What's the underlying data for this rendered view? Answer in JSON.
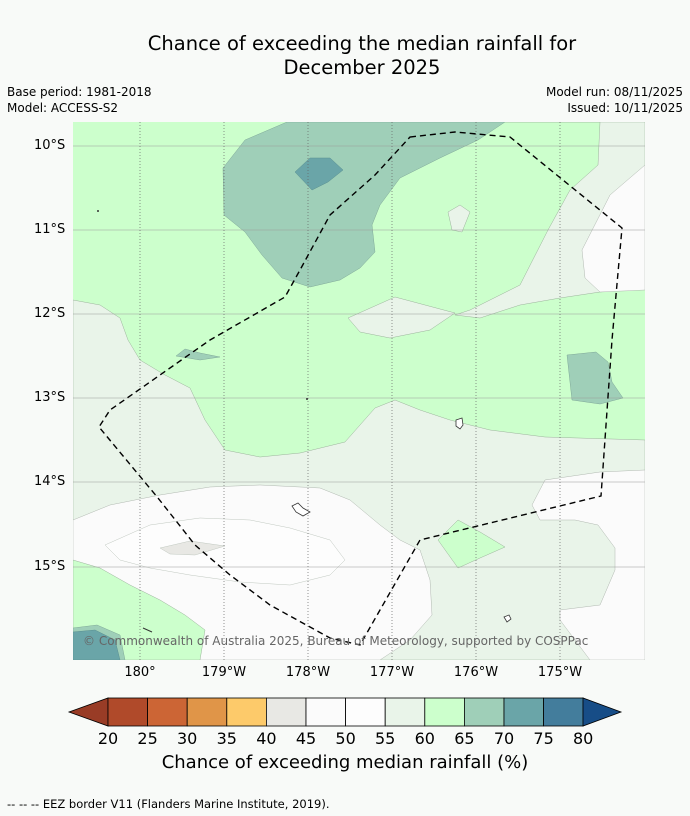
{
  "title": {
    "line1": "Chance of exceeding the median rainfall for",
    "line2": "December 2025"
  },
  "meta": {
    "base_period": "Base period: 1981-2018",
    "model": "Model: ACCESS-S2",
    "model_run": "Model run: 08/11/2025",
    "issued": "Issued: 10/11/2025"
  },
  "map": {
    "lat_labels": [
      "10°S",
      "11°S",
      "12°S",
      "13°S",
      "14°S",
      "15°S"
    ],
    "lon_labels": [
      "180°",
      "179°W",
      "178°W",
      "177°W",
      "176°W",
      "175°W"
    ],
    "copyright": "© Commonwealth of Australia 2025, Bureau of Meteorology, supported by COSPPac"
  },
  "colorbar": {
    "title": "Chance of exceeding median rainfall (%)",
    "labels": [
      "20",
      "25",
      "30",
      "35",
      "40",
      "45",
      "50",
      "55",
      "60",
      "65",
      "70",
      "75",
      "80"
    ],
    "colors": [
      "#b04a2a",
      "#cc6535",
      "#e09548",
      "#fdca6a",
      "#e8e8e4",
      "#fbfbfb",
      "#fdfdfd",
      "#e9f4e9",
      "#ccffcc",
      "#9fcfb8",
      "#6aa5a8",
      "#437d9c"
    ],
    "under_color": "#993c26",
    "over_color": "#174d87"
  },
  "footnote": "--  --  -- EEZ border V11 (Flanders Marine Institute, 2019)."
}
